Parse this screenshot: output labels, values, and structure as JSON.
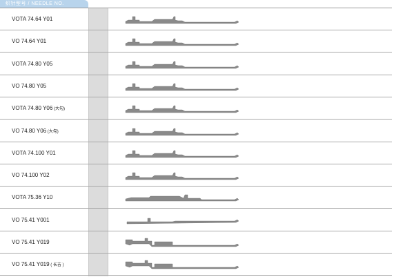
{
  "header": {
    "title": "织针型号 / NEEDLE NO."
  },
  "rows": [
    {
      "label": "VOTA 74.64  Y01",
      "note": "",
      "shape": "a"
    },
    {
      "label": "VO 74.64   Y01",
      "note": "",
      "shape": "a"
    },
    {
      "label": "VOTA 74.80 Y05",
      "note": "",
      "shape": "a"
    },
    {
      "label": "VO 74.80 Y05",
      "note": "",
      "shape": "a"
    },
    {
      "label": "VOTA 74.80 Y06",
      "note": "(大勾)",
      "shape": "a"
    },
    {
      "label": "VO 74.80 Y06",
      "note": "(大勾)",
      "shape": "a"
    },
    {
      "label": "VOTA 74.100 Y01",
      "note": "",
      "shape": "a"
    },
    {
      "label": "VO 74.100 Y02",
      "note": "",
      "shape": "a"
    },
    {
      "label": "VOTA 75.36 Y10",
      "note": "",
      "shape": "b"
    },
    {
      "label": "VO 75.41 Y001",
      "note": "",
      "shape": "c"
    },
    {
      "label": "VO 75.41 Y019",
      "note": "",
      "shape": "d"
    },
    {
      "label": "VO 75.41 Y019",
      "note": "( 长吉 )",
      "shape": "d"
    }
  ],
  "colors": {
    "header_tab": "#b8d4ec",
    "column_gray": "#dcdcdc",
    "needle_gray": "#8a8a8a"
  }
}
